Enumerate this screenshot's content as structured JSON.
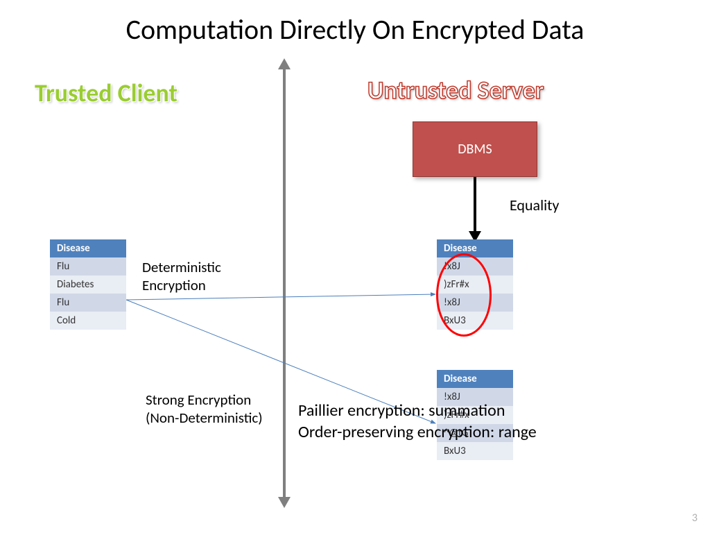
{
  "title": "Computation Directly On Encrypted Data",
  "trusted_label": "Trusted Client",
  "untrusted_label": "Untrusted Server",
  "dbms_label": "DBMS",
  "equality_label": "Equality",
  "det_label_line1": "Deterministic",
  "det_label_line2": "Encryption",
  "strong_label_line1": "Strong Encryption",
  "strong_label_line2": "(Non-Deterministic)",
  "paillier_line1": "Paillier encryption: summation",
  "paillier_line2": "Order-preserving encryption: range",
  "slide_number": "3",
  "colors": {
    "trusted": "#9acd32",
    "untrusted_stroke": "#c0392b",
    "dbms_fill": "#c0504d",
    "table_header": "#4f81bd",
    "table_row_dark": "#d0d8e8",
    "table_row_light": "#e9edf4",
    "axis": "#7f7f7f",
    "ellipse": "#ff0000",
    "connector": "#4a7ebb"
  },
  "client_table": {
    "header": "Disease",
    "rows": [
      "Flu",
      "Diabetes",
      "Flu",
      "Cold"
    ]
  },
  "server_table_det": {
    "header": "Disease",
    "rows": [
      "!x8J",
      ")zFr#x",
      "!x8J",
      "BxU3"
    ]
  },
  "server_table_nondet": {
    "header": "Disease",
    "rows": [
      "!x8J",
      ")zFr#x",
      "^@tG",
      "BxU3"
    ]
  },
  "connectors": [
    {
      "from": [
        182,
        432
      ],
      "to": [
        628,
        424
      ]
    },
    {
      "from": [
        182,
        432
      ],
      "to": [
        628,
        610
      ]
    }
  ]
}
